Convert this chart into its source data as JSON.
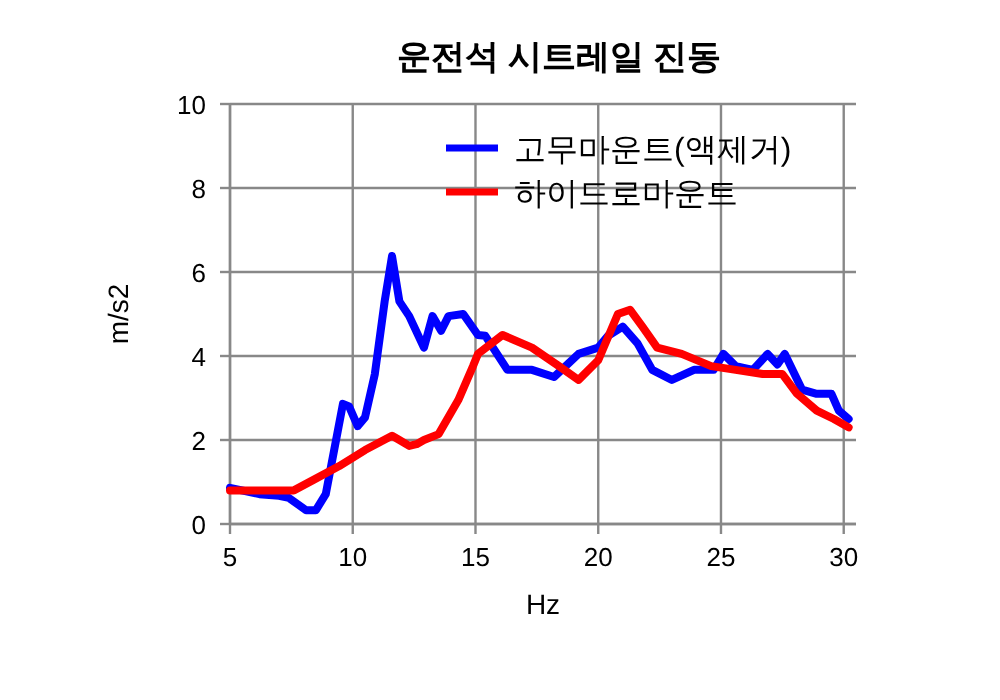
{
  "chart_data": {
    "type": "line",
    "title": "운전석 시트레일 진동",
    "xlabel": "Hz",
    "ylabel": "m/s2",
    "xlim": [
      5,
      30.5
    ],
    "xticks": [
      5,
      10,
      15,
      20,
      25,
      30
    ],
    "ylim": [
      0,
      10
    ],
    "yticks": [
      0,
      2,
      4,
      6,
      8,
      10
    ],
    "grid": true,
    "legend": "top right",
    "marker": "none",
    "line_style": "solid",
    "series": [
      {
        "name": "고무마운트(액제거)",
        "color": "#0000ff",
        "x": [
          5,
          6.2,
          7.0,
          7.4,
          8.1,
          8.5,
          8.9,
          9.6,
          9.85,
          10.2,
          10.5,
          10.9,
          11.3,
          11.6,
          11.9,
          12.3,
          12.9,
          13.25,
          13.6,
          13.9,
          14.5,
          15.1,
          15.4,
          16.3,
          17.3,
          18.2,
          19.2,
          20.0,
          20.4,
          21.0,
          21.6,
          22.2,
          23.0,
          23.9,
          24.7,
          25.1,
          25.6,
          26.3,
          26.9,
          27.3,
          27.6,
          28.3,
          28.9,
          29.5,
          29.8,
          30.2
        ],
        "values": [
          0.86,
          0.71,
          0.67,
          0.62,
          0.33,
          0.33,
          0.71,
          2.86,
          2.8,
          2.33,
          2.54,
          3.57,
          5.3,
          6.38,
          5.3,
          4.95,
          4.2,
          4.95,
          4.6,
          4.95,
          5.0,
          4.5,
          4.48,
          3.67,
          3.67,
          3.5,
          4.05,
          4.2,
          4.48,
          4.7,
          4.3,
          3.67,
          3.43,
          3.67,
          3.67,
          4.05,
          3.76,
          3.67,
          4.05,
          3.8,
          4.05,
          3.2,
          3.1,
          3.1,
          2.7,
          2.5
        ]
      },
      {
        "name": "하이드로마운트",
        "color": "#ff0000",
        "x": [
          5,
          7.0,
          7.6,
          8.4,
          9.45,
          10.5,
          11.6,
          11.9,
          12.3,
          12.6,
          12.9,
          13.5,
          14.3,
          14.9,
          15.1,
          16.1,
          17.3,
          18.4,
          19.2,
          20.0,
          20.8,
          21.3,
          21.8,
          22.4,
          23.4,
          24.6,
          25.6,
          26.7,
          27.5,
          28.1,
          28.9,
          29.6,
          30.2
        ],
        "values": [
          0.8,
          0.8,
          0.8,
          1.05,
          1.38,
          1.76,
          2.1,
          2.0,
          1.86,
          1.9,
          2.0,
          2.14,
          2.95,
          3.76,
          4.05,
          4.5,
          4.2,
          3.76,
          3.43,
          3.9,
          5.0,
          5.1,
          4.7,
          4.2,
          4.05,
          3.76,
          3.67,
          3.57,
          3.57,
          3.1,
          2.7,
          2.5,
          2.3
        ]
      }
    ]
  }
}
